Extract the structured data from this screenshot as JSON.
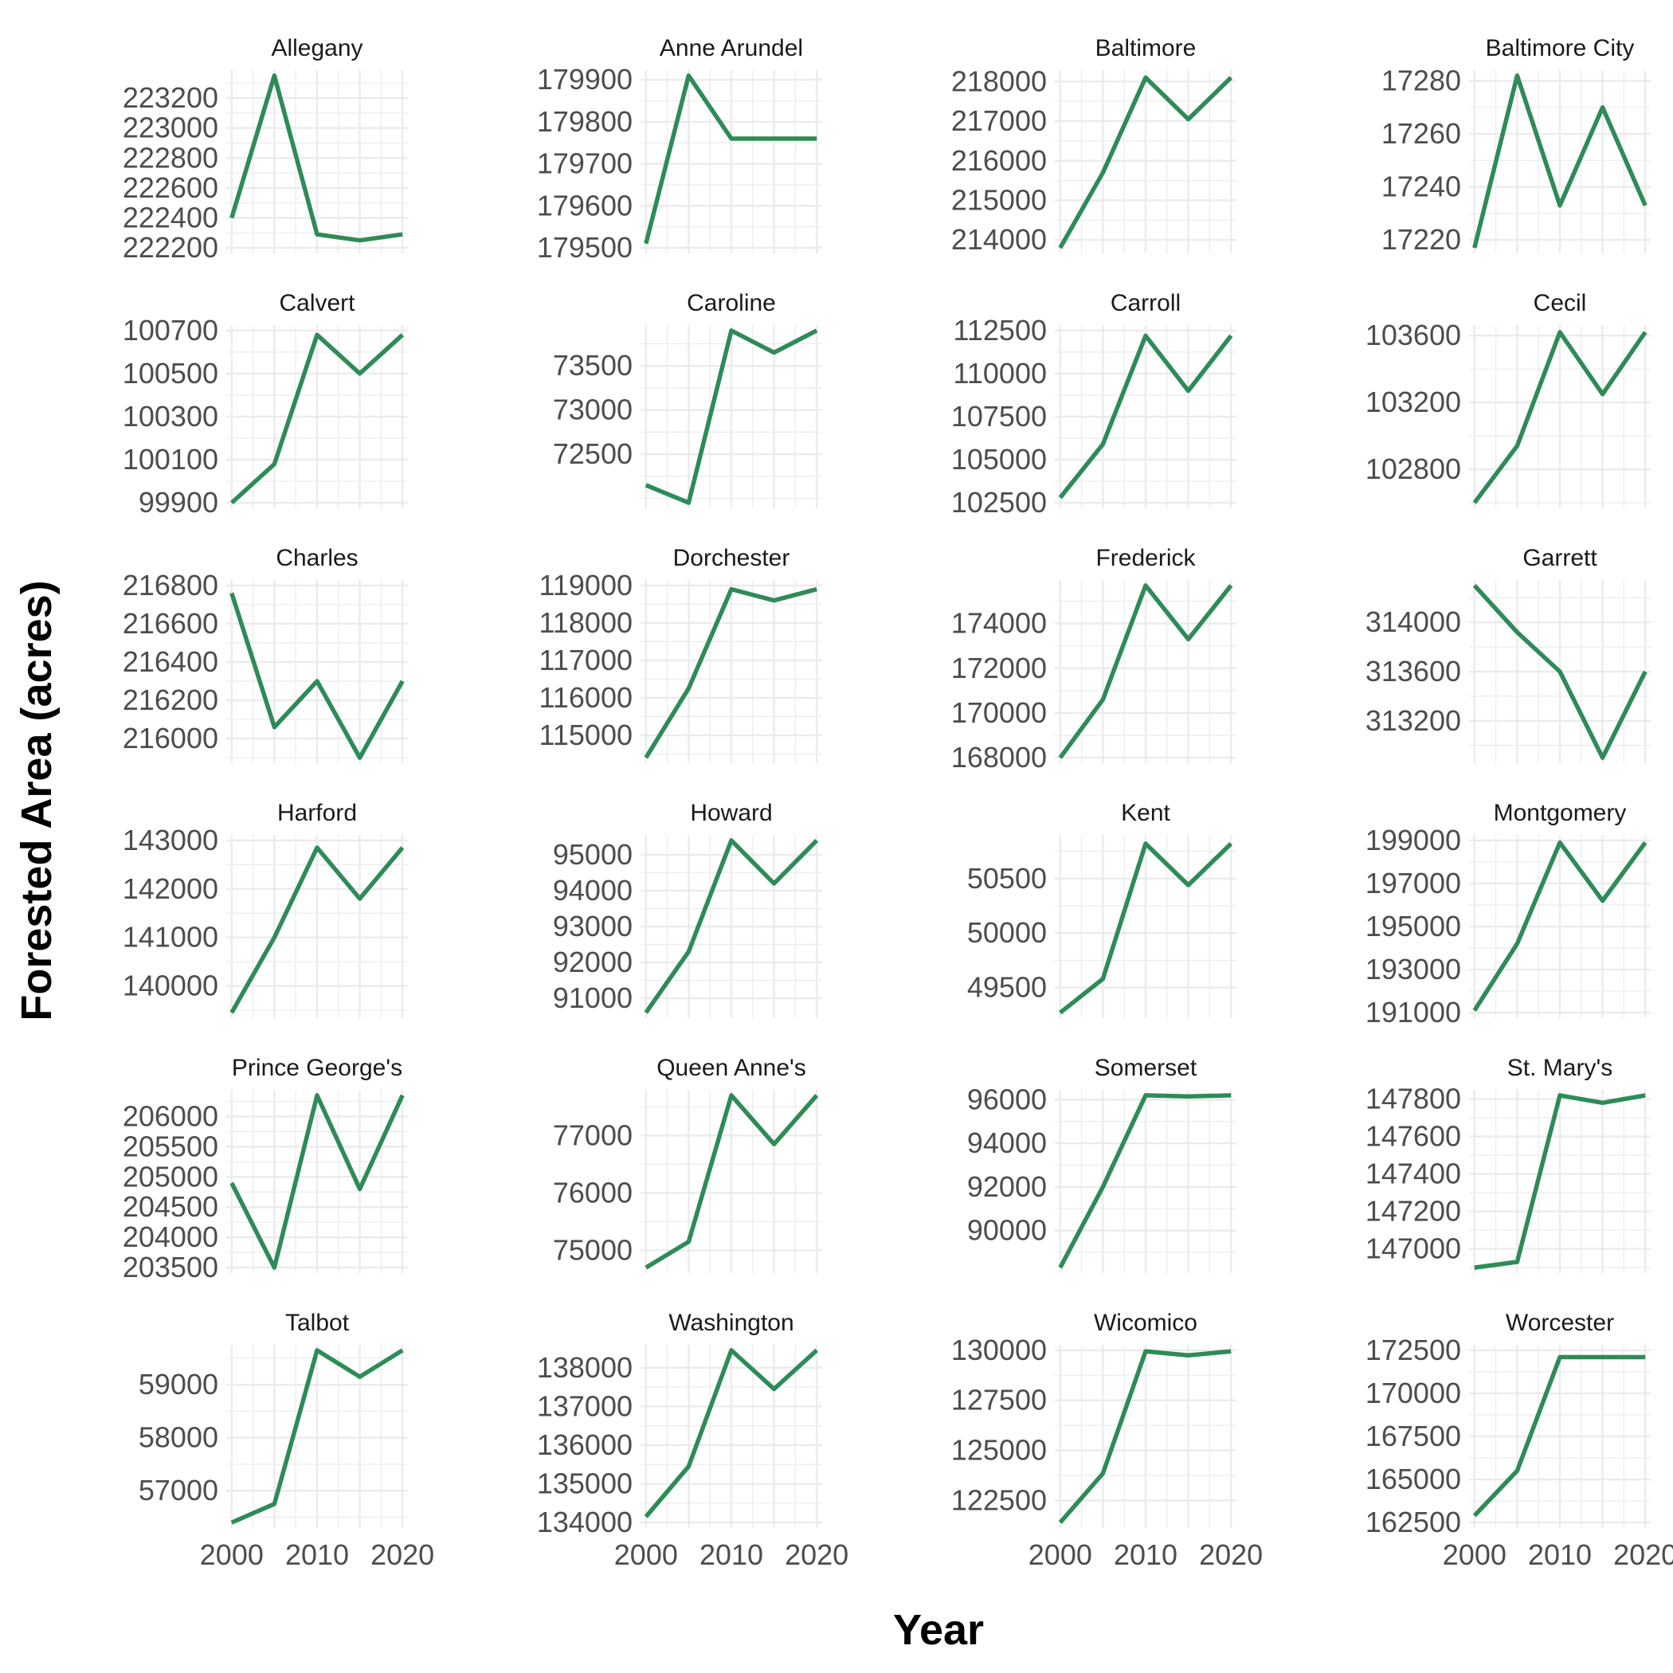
{
  "figure": {
    "xlabel": "Year",
    "ylabel": "Forested Area (acres)",
    "line_color": "#2E8B57",
    "grid_color": "#EBEBEB",
    "text_color": "#4D4D4D"
  },
  "chart_data": {
    "type": "line",
    "layout": "facet-grid 6 rows x 4 columns",
    "x": [
      2000,
      2005,
      2010,
      2015,
      2020
    ],
    "x_ticks": [
      "2000",
      "2010",
      "2020"
    ],
    "xlim": [
      2000,
      2020
    ],
    "grid": true,
    "series": [
      {
        "name": "Allegany",
        "values": [
          222400,
          223350,
          222290,
          222250,
          222290
        ],
        "ylim": [
          222200,
          223350
        ],
        "y_ticks": [
          "222200",
          "222400",
          "222600",
          "222800",
          "223000",
          "223200"
        ]
      },
      {
        "name": "Anne Arundel",
        "values": [
          179510,
          179910,
          179760,
          179760,
          179760
        ],
        "ylim": [
          179500,
          179910
        ],
        "y_ticks": [
          "179500",
          "179600",
          "179700",
          "179800",
          "179900"
        ]
      },
      {
        "name": "Baltimore",
        "values": [
          213800,
          215700,
          218100,
          217050,
          218100
        ],
        "ylim": [
          213800,
          218150
        ],
        "y_ticks": [
          "214000",
          "215000",
          "216000",
          "217000",
          "218000"
        ]
      },
      {
        "name": "Baltimore City",
        "values": [
          17217,
          17282,
          17233,
          17270,
          17233
        ],
        "ylim": [
          17217,
          17282
        ],
        "y_ticks": [
          "17220",
          "17240",
          "17260",
          "17280"
        ]
      },
      {
        "name": "Calvert",
        "values": [
          99900,
          100080,
          100680,
          100500,
          100680
        ],
        "ylim": [
          99900,
          100700
        ],
        "y_ticks": [
          "99900",
          "100100",
          "100300",
          "100500",
          "100700"
        ]
      },
      {
        "name": "Caroline",
        "values": [
          72150,
          71950,
          73900,
          73650,
          73900
        ],
        "ylim": [
          71950,
          73900
        ],
        "y_ticks": [
          "72500",
          "73000",
          "73500"
        ]
      },
      {
        "name": "Carroll",
        "values": [
          102800,
          105900,
          112200,
          109000,
          112200
        ],
        "ylim": [
          102500,
          112500
        ],
        "y_ticks": [
          "102500",
          "105000",
          "107500",
          "110000",
          "112500"
        ]
      },
      {
        "name": "Cecil",
        "values": [
          102600,
          102940,
          103620,
          103250,
          103620
        ],
        "ylim": [
          102600,
          103630
        ],
        "y_ticks": [
          "102800",
          "103200",
          "103600"
        ]
      },
      {
        "name": "Charles",
        "values": [
          216760,
          216060,
          216300,
          215900,
          216300
        ],
        "ylim": [
          215900,
          216800
        ],
        "y_ticks": [
          "216000",
          "216200",
          "216400",
          "216600",
          "216800"
        ]
      },
      {
        "name": "Dorchester",
        "values": [
          114400,
          116250,
          118900,
          118600,
          118900
        ],
        "ylim": [
          114400,
          119000
        ],
        "y_ticks": [
          "115000",
          "116000",
          "117000",
          "118000",
          "119000"
        ]
      },
      {
        "name": "Frederick",
        "values": [
          168000,
          170600,
          175700,
          173300,
          175700
        ],
        "ylim": [
          168000,
          175700
        ],
        "y_ticks": [
          "168000",
          "170000",
          "172000",
          "174000"
        ]
      },
      {
        "name": "Garrett",
        "values": [
          314300,
          313920,
          313600,
          312900,
          313600
        ],
        "ylim": [
          312900,
          314300
        ],
        "y_ticks": [
          "313200",
          "313600",
          "314000"
        ]
      },
      {
        "name": "Harford",
        "values": [
          139450,
          141000,
          142850,
          141800,
          142850
        ],
        "ylim": [
          139450,
          143000
        ],
        "y_ticks": [
          "140000",
          "141000",
          "142000",
          "143000"
        ]
      },
      {
        "name": "Howard",
        "values": [
          90600,
          92300,
          95400,
          94200,
          95400
        ],
        "ylim": [
          90600,
          95400
        ],
        "y_ticks": [
          "91000",
          "92000",
          "93000",
          "94000",
          "95000"
        ]
      },
      {
        "name": "Kent",
        "values": [
          49270,
          49580,
          50820,
          50440,
          50820
        ],
        "ylim": [
          49270,
          50850
        ],
        "y_ticks": [
          "49500",
          "50000",
          "50500"
        ]
      },
      {
        "name": "Montgomery",
        "values": [
          191100,
          194200,
          198900,
          196200,
          198900
        ],
        "ylim": [
          191000,
          199000
        ],
        "y_ticks": [
          "191000",
          "193000",
          "195000",
          "197000",
          "199000"
        ]
      },
      {
        "name": "Prince George's",
        "values": [
          204900,
          203500,
          206350,
          204800,
          206350
        ],
        "ylim": [
          203500,
          206350
        ],
        "y_ticks": [
          "203500",
          "204000",
          "204500",
          "205000",
          "205500",
          "206000"
        ]
      },
      {
        "name": "Queen Anne's",
        "values": [
          74700,
          75150,
          77700,
          76850,
          77700
        ],
        "ylim": [
          74700,
          77700
        ],
        "y_ticks": [
          "75000",
          "76000",
          "77000"
        ]
      },
      {
        "name": "Somerset",
        "values": [
          88300,
          92000,
          96200,
          96150,
          96200
        ],
        "ylim": [
          88300,
          96200
        ],
        "y_ticks": [
          "90000",
          "92000",
          "94000",
          "96000"
        ]
      },
      {
        "name": "St. Mary's",
        "values": [
          146900,
          146930,
          147820,
          147780,
          147820
        ],
        "ylim": [
          146900,
          147820
        ],
        "y_ticks": [
          "147000",
          "147200",
          "147400",
          "147600",
          "147800"
        ]
      },
      {
        "name": "Talbot",
        "values": [
          56400,
          56750,
          59650,
          59150,
          59650
        ],
        "ylim": [
          56400,
          59650
        ],
        "y_ticks": [
          "57000",
          "58000",
          "59000"
        ]
      },
      {
        "name": "Washington",
        "values": [
          134150,
          135450,
          138450,
          137450,
          138450
        ],
        "ylim": [
          134000,
          138450
        ],
        "y_ticks": [
          "134000",
          "135000",
          "136000",
          "137000",
          "138000"
        ]
      },
      {
        "name": "Wicomico",
        "values": [
          121400,
          123850,
          129950,
          129750,
          129950
        ],
        "ylim": [
          121400,
          130000
        ],
        "y_ticks": [
          "122500",
          "125000",
          "127500",
          "130000"
        ]
      },
      {
        "name": "Worcester",
        "values": [
          162900,
          165500,
          172100,
          172100,
          172100
        ],
        "ylim": [
          162500,
          172500
        ],
        "y_ticks": [
          "162500",
          "165000",
          "167500",
          "170000",
          "172500"
        ]
      }
    ]
  }
}
